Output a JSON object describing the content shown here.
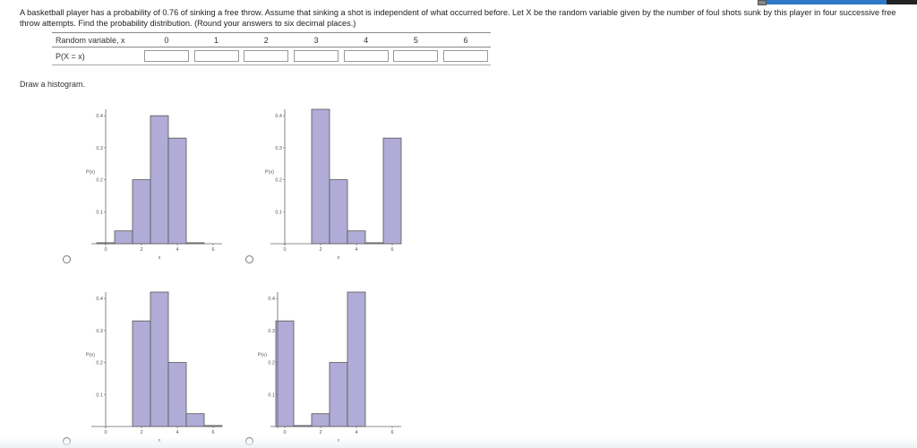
{
  "question": {
    "text": "A basketball player has a probability of 0.76 of sinking a free throw. Assume that sinking a shot is independent of what occurred before. Let X be the random variable given by the number of foul shots sunk by this player in four successive free throw attempts. Find the probability distribution. (Round your answers to six decimal places.)"
  },
  "table": {
    "header_label": "Random variable, x",
    "row_label": "P(X = x)",
    "x_values": [
      "0",
      "1",
      "2",
      "3",
      "4",
      "5",
      "6"
    ],
    "inputs": [
      "",
      "",
      "",
      "",
      "",
      "",
      ""
    ]
  },
  "draw_label": "Draw a histogram.",
  "chart_data": [
    {
      "type": "bar",
      "option": "A",
      "xlabel": "x",
      "ylabel": "P(x)",
      "x": [
        0,
        1,
        2,
        3,
        4,
        5
      ],
      "values": [
        0.003,
        0.04,
        0.2,
        0.4,
        0.33,
        0.003
      ],
      "xticks": [
        "0",
        "2",
        "4",
        "6"
      ],
      "yticks": [
        "0.1",
        "0.2",
        "0.3",
        "0.4"
      ],
      "xlim": [
        -0.5,
        6.5
      ],
      "ylim": [
        0,
        0.42
      ],
      "bar_color": "#b0acd7"
    },
    {
      "type": "bar",
      "option": "B",
      "xlabel": "x",
      "ylabel": "P(x)",
      "x": [
        2,
        3,
        4,
        5,
        6
      ],
      "values": [
        0.42,
        0.2,
        0.04,
        0.003,
        0.33
      ],
      "xticks": [
        "0",
        "2",
        "4",
        "6"
      ],
      "yticks": [
        "0.1",
        "0.2",
        "0.3",
        "0.4"
      ],
      "xlim": [
        -0.5,
        6.5
      ],
      "ylim": [
        0,
        0.42
      ],
      "bar_color": "#b0acd7"
    },
    {
      "type": "bar",
      "option": "C",
      "xlabel": "x",
      "ylabel": "P(x)",
      "x": [
        2,
        3,
        4,
        5,
        6
      ],
      "values": [
        0.33,
        0.42,
        0.2,
        0.04,
        0.003
      ],
      "xticks": [
        "0",
        "2",
        "4",
        "6"
      ],
      "yticks": [
        "0.1",
        "0.2",
        "0.3",
        "0.4"
      ],
      "xlim": [
        -0.5,
        6.5
      ],
      "ylim": [
        0,
        0.42
      ],
      "bar_color": "#b0acd7"
    },
    {
      "type": "bar",
      "option": "D",
      "xlabel": "x",
      "ylabel": "P(x)",
      "x": [
        0,
        1,
        2,
        3,
        4
      ],
      "values": [
        0.33,
        0.003,
        0.04,
        0.2,
        0.42
      ],
      "xticks": [
        "0",
        "2",
        "4",
        "6"
      ],
      "yticks": [
        "0.1",
        "0.2",
        "0.3",
        "0.4"
      ],
      "xlim": [
        -0.5,
        6.5
      ],
      "ylim": [
        0,
        0.42
      ],
      "bar_color": "#b0acd7"
    }
  ]
}
